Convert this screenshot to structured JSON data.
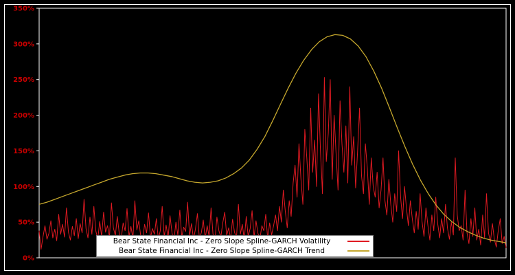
{
  "figure": {
    "background": "#000000",
    "border_color": "#ffffff"
  },
  "axis": {
    "line_color": "#ffffff",
    "tick_color": "#cc0000"
  },
  "chart_data": {
    "type": "line",
    "title": "",
    "xlabel": "",
    "ylabel": "",
    "ylim": [
      0,
      350
    ],
    "yticks": [
      0,
      50,
      100,
      150,
      200,
      250,
      300,
      350
    ],
    "ytick_labels": [
      "0%",
      "50%",
      "100%",
      "150%",
      "200%",
      "250%",
      "300%",
      "350%"
    ],
    "grid": false,
    "legend_position": "bottom-center",
    "series": [
      {
        "name": "Bear State Financial Inc - Zero Slope Spline-GARCH Volatility",
        "color": "#e01a22",
        "stroke_width": 1,
        "values": [
          38,
          12,
          30,
          45,
          26,
          34,
          52,
          28,
          40,
          24,
          61,
          33,
          47,
          29,
          70,
          36,
          25,
          44,
          31,
          55,
          27,
          48,
          35,
          82,
          41,
          28,
          57,
          33,
          72,
          38,
          26,
          51,
          30,
          64,
          36,
          45,
          29,
          77,
          42,
          31,
          58,
          34,
          26,
          49,
          38,
          69,
          30,
          44,
          27,
          80,
          39,
          52,
          31,
          25,
          47,
          35,
          63,
          28,
          41,
          33,
          55,
          26,
          38,
          72,
          30,
          46,
          28,
          59,
          35,
          24,
          50,
          32,
          67,
          29,
          43,
          37,
          78,
          31,
          48,
          26,
          40,
          62,
          28,
          35,
          53,
          27,
          45,
          30,
          70,
          33,
          26,
          57,
          38,
          29,
          49,
          64,
          31,
          42,
          27,
          54,
          36,
          28,
          75,
          33,
          47,
          25,
          58,
          30,
          41,
          66,
          29,
          52,
          34,
          27,
          45,
          38,
          61,
          26,
          49,
          32,
          45,
          60,
          38,
          72,
          50,
          95,
          65,
          42,
          80,
          58,
          105,
          130,
          85,
          160,
          110,
          75,
          180,
          140,
          95,
          210,
          120,
          165,
          100,
          230,
          150,
          90,
          253,
          135,
          175,
          250,
          110,
          200,
          145,
          95,
          220,
          160,
          120,
          185,
          105,
          240,
          130,
          170,
          98,
          150,
          210,
          115,
          90,
          160,
          125,
          75,
          140,
          100,
          85,
          120,
          70,
          95,
          140,
          80,
          60,
          110,
          75,
          50,
          90,
          65,
          150,
          85,
          55,
          100,
          70,
          45,
          80,
          55,
          35,
          65,
          40,
          90,
          50,
          30,
          70,
          45,
          25,
          60,
          38,
          85,
          48,
          28,
          55,
          35,
          75,
          42,
          26,
          50,
          32,
          140,
          60,
          38,
          45,
          25,
          95,
          35,
          20,
          55,
          30,
          70,
          25,
          40,
          18,
          60,
          28,
          90,
          35,
          22,
          48,
          26,
          15,
          38,
          55,
          20,
          30,
          14
        ]
      },
      {
        "name": "Bear State Financial Inc - Zero Slope Spline-GARCH Trend",
        "color": "#c5a72d",
        "stroke_width": 1.3,
        "values": [
          75,
          78,
          82,
          86,
          90,
          94,
          98,
          102,
          106,
          110,
          113,
          116,
          118,
          119,
          119,
          118,
          116,
          114,
          111,
          108,
          106,
          105,
          106,
          108,
          112,
          118,
          126,
          137,
          152,
          170,
          192,
          215,
          238,
          259,
          277,
          292,
          303,
          310,
          313,
          312,
          307,
          297,
          282,
          262,
          238,
          211,
          183,
          156,
          131,
          109,
          90,
          74,
          61,
          51,
          43,
          37,
          32,
          28,
          25,
          23,
          21
        ]
      }
    ]
  },
  "legend": {
    "entries": [
      {
        "label": "Bear State Financial Inc - Zero Slope Spline-GARCH Volatility"
      },
      {
        "label": "Bear State Financial Inc - Zero Slope Spline-GARCH Trend"
      }
    ]
  }
}
